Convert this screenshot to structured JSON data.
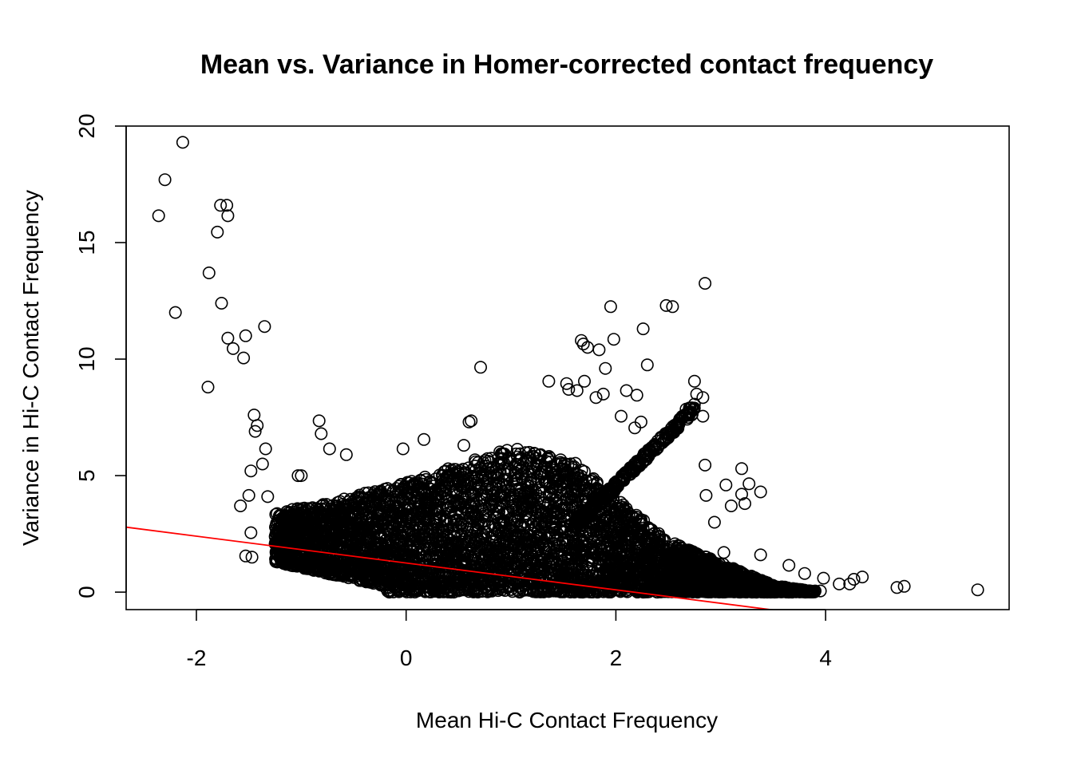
{
  "chart_data": {
    "type": "scatter",
    "title": "Mean vs. Variance in Homer-corrected contact frequency",
    "xlabel": "Mean Hi-C Contact Frequency",
    "ylabel": "Variance in Hi-C Contact Frequency",
    "xlim": [
      -2.67,
      5.75
    ],
    "ylim": [
      -0.75,
      20
    ],
    "xticks": [
      -2,
      0,
      2,
      4
    ],
    "yticks": [
      0,
      5,
      10,
      15,
      20
    ],
    "grid": false,
    "marker": "open-circle",
    "point_color": "#000000",
    "fit_line": {
      "color": "#ff0000",
      "intercept": 1.25,
      "slope": -0.576
    },
    "dense_cloud_description_points_note": "",
    "points": [
      [
        -2.13,
        19.3
      ],
      [
        -2.3,
        17.7
      ],
      [
        -2.36,
        16.15
      ],
      [
        -1.77,
        16.6
      ],
      [
        -1.71,
        16.6
      ],
      [
        -1.7,
        16.15
      ],
      [
        -1.8,
        15.45
      ],
      [
        -1.88,
        13.7
      ],
      [
        -1.76,
        12.4
      ],
      [
        -2.2,
        12.0
      ],
      [
        -1.35,
        11.4
      ],
      [
        -1.53,
        11.0
      ],
      [
        -1.7,
        10.9
      ],
      [
        -1.65,
        10.45
      ],
      [
        -1.55,
        10.05
      ],
      [
        -1.89,
        8.8
      ],
      [
        -1.45,
        7.6
      ],
      [
        -1.42,
        7.15
      ],
      [
        -1.44,
        6.9
      ],
      [
        -1.34,
        6.15
      ],
      [
        -1.37,
        5.5
      ],
      [
        -1.48,
        5.2
      ],
      [
        -0.83,
        7.35
      ],
      [
        -0.81,
        6.8
      ],
      [
        -0.73,
        6.15
      ],
      [
        -0.57,
        5.9
      ],
      [
        -1.03,
        5.0
      ],
      [
        -1.0,
        5.0
      ],
      [
        -1.58,
        3.7
      ],
      [
        -1.5,
        4.15
      ],
      [
        -1.53,
        1.55
      ],
      [
        -1.47,
        1.5
      ],
      [
        -1.48,
        2.55
      ],
      [
        -1.32,
        4.1
      ],
      [
        0.71,
        9.65
      ],
      [
        1.9,
        9.6
      ],
      [
        2.3,
        9.75
      ],
      [
        1.67,
        10.8
      ],
      [
        1.69,
        10.65
      ],
      [
        1.73,
        10.5
      ],
      [
        1.84,
        10.4
      ],
      [
        1.98,
        10.85
      ],
      [
        2.26,
        11.3
      ],
      [
        1.95,
        12.25
      ],
      [
        2.48,
        12.3
      ],
      [
        2.54,
        12.25
      ],
      [
        2.85,
        13.25
      ],
      [
        1.36,
        9.05
      ],
      [
        1.53,
        8.95
      ],
      [
        1.55,
        8.7
      ],
      [
        1.7,
        9.05
      ],
      [
        2.75,
        9.05
      ],
      [
        2.77,
        8.5
      ],
      [
        2.83,
        8.35
      ],
      [
        2.7,
        7.9
      ],
      [
        2.67,
        7.85
      ],
      [
        2.83,
        7.55
      ],
      [
        2.85,
        5.45
      ],
      [
        3.2,
        5.3
      ],
      [
        3.05,
        4.6
      ],
      [
        3.27,
        4.65
      ],
      [
        3.38,
        4.3
      ],
      [
        3.2,
        4.2
      ],
      [
        2.86,
        4.15
      ],
      [
        3.23,
        3.8
      ],
      [
        3.1,
        3.7
      ],
      [
        2.94,
        3.0
      ],
      [
        3.03,
        1.7
      ],
      [
        3.38,
        1.6
      ],
      [
        3.65,
        1.15
      ],
      [
        3.8,
        0.8
      ],
      [
        3.98,
        0.6
      ],
      [
        4.13,
        0.35
      ],
      [
        4.23,
        0.35
      ],
      [
        4.27,
        0.55
      ],
      [
        4.35,
        0.65
      ],
      [
        4.68,
        0.2
      ],
      [
        4.75,
        0.25
      ],
      [
        5.45,
        0.1
      ],
      [
        3.95,
        0.05
      ],
      [
        3.9,
        0.05
      ],
      [
        2.24,
        7.3
      ],
      [
        2.18,
        7.05
      ],
      [
        2.05,
        7.55
      ],
      [
        2.1,
        8.65
      ],
      [
        2.2,
        8.45
      ],
      [
        1.81,
        8.35
      ],
      [
        1.88,
        8.5
      ],
      [
        1.63,
        8.65
      ],
      [
        0.55,
        6.3
      ],
      [
        0.6,
        7.3
      ],
      [
        0.62,
        7.35
      ],
      [
        -0.03,
        6.15
      ],
      [
        0.17,
        6.55
      ]
    ]
  }
}
